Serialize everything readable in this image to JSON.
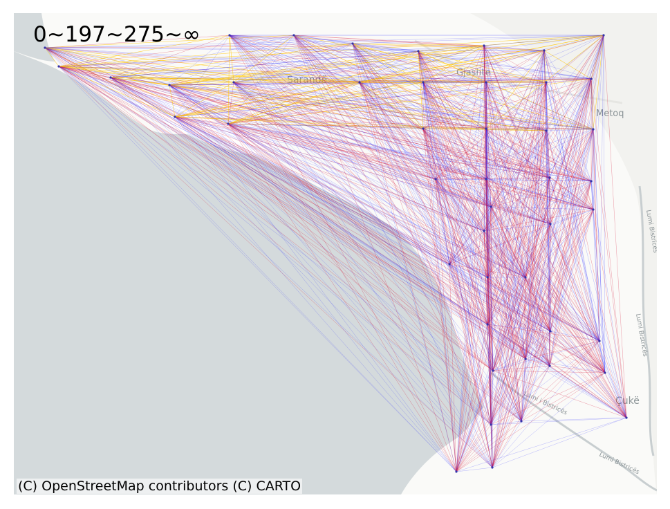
{
  "legend": {
    "thresholds_text": "0~197~275~∞"
  },
  "attribution": "(C) OpenStreetMap contributors (C) CARTO",
  "colors": {
    "sea": "#d4dadc",
    "land": "#fafaf8",
    "low": "#1a1aff",
    "mid": "#d81b3c",
    "high": "#ffc400"
  },
  "place_labels": [
    {
      "text": "Gjashte"
    },
    {
      "text": "Sarandë"
    },
    {
      "text": "Metoq"
    },
    {
      "text": "Çukë"
    },
    {
      "text": "Lumi Bistricës"
    },
    {
      "text": "Lumi i Bistricës"
    },
    {
      "text": "Lumi Bistricës"
    },
    {
      "text": "Lumi Bistricës"
    }
  ],
  "thresholds": [
    0,
    197,
    275
  ]
}
